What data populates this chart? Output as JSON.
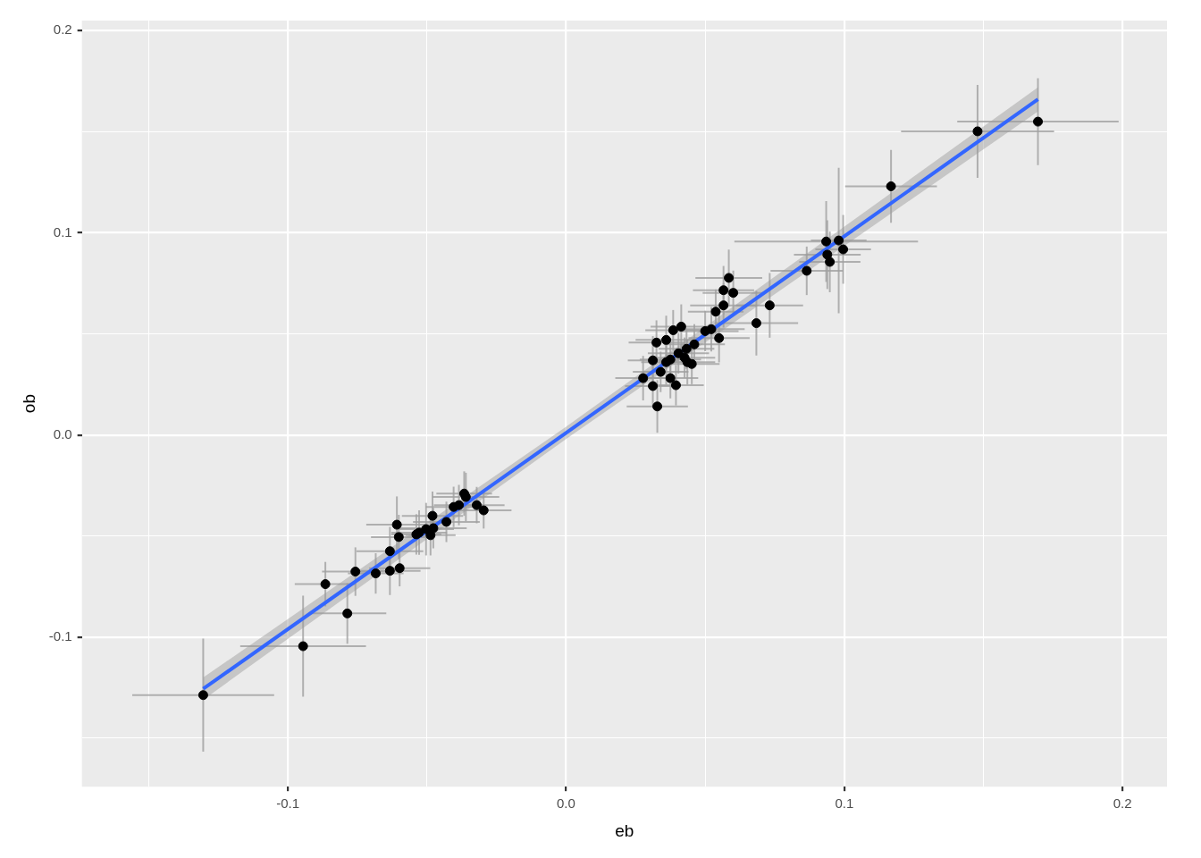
{
  "chart_data": {
    "type": "scatter",
    "xlabel": "eb",
    "ylabel": "ob",
    "grid": true,
    "legend": false,
    "xlim": [
      -0.174,
      0.216
    ],
    "ylim": [
      -0.174,
      0.205
    ],
    "xticks": [
      {
        "value": -0.15,
        "label": null
      },
      {
        "value": -0.1,
        "label": "-0.1"
      },
      {
        "value": -0.05,
        "label": null
      },
      {
        "value": 0,
        "label": "0.0"
      },
      {
        "value": 0.05,
        "label": null
      },
      {
        "value": 0.1,
        "label": "0.1"
      },
      {
        "value": 0.15,
        "label": null
      },
      {
        "value": 0.2,
        "label": "0.2"
      }
    ],
    "yticks": [
      {
        "value": -0.15,
        "label": null
      },
      {
        "value": -0.1,
        "label": "-0.1"
      },
      {
        "value": -0.05,
        "label": null
      },
      {
        "value": 0,
        "label": "0.0"
      },
      {
        "value": 0.05,
        "label": null
      },
      {
        "value": 0.1,
        "label": "0.1"
      },
      {
        "value": 0.15,
        "label": null
      },
      {
        "value": 0.2,
        "label": "0.2"
      }
    ],
    "series": [
      {
        "color": "#000000",
        "marker": "circle",
        "x": [
          -0.1304,
          -0.0945,
          -0.0865,
          -0.0786,
          -0.0757,
          -0.0684,
          -0.0633,
          -0.0633,
          -0.0608,
          -0.0601,
          -0.0598,
          -0.0538,
          -0.0528,
          -0.0503,
          -0.0487,
          -0.0477,
          -0.048,
          -0.043,
          -0.0404,
          -0.0385,
          -0.0366,
          -0.036,
          -0.0321,
          -0.0296,
          0.0277,
          0.0312,
          0.0312,
          0.0325,
          0.0328,
          0.034,
          0.036,
          0.036,
          0.0375,
          0.0375,
          0.0385,
          0.0395,
          0.0404,
          0.0414,
          0.0426,
          0.0433,
          0.0436,
          0.0452,
          0.0461,
          0.05,
          0.0522,
          0.0538,
          0.055,
          0.0566,
          0.0566,
          0.0585,
          0.0601,
          0.0684,
          0.0732,
          0.0865,
          0.0935,
          0.0939,
          0.0948,
          0.098,
          0.0996,
          0.1168,
          0.1479,
          0.1696
        ],
        "values": [
          -0.1287,
          -0.1045,
          -0.0738,
          -0.0883,
          -0.0676,
          -0.0685,
          -0.0575,
          -0.0672,
          -0.0444,
          -0.0505,
          -0.0659,
          -0.0492,
          -0.0483,
          -0.0466,
          -0.0496,
          -0.0461,
          -0.04,
          -0.043,
          -0.0356,
          -0.0347,
          -0.029,
          -0.0307,
          -0.0347,
          -0.0373,
          0.0281,
          0.0369,
          0.0242,
          0.0457,
          0.0141,
          0.0312,
          0.047,
          0.036,
          0.0373,
          0.0281,
          0.0518,
          0.0246,
          0.0404,
          0.0536,
          0.0382,
          0.0426,
          0.036,
          0.0351,
          0.0448,
          0.0514,
          0.0523,
          0.061,
          0.0479,
          0.0641,
          0.0716,
          0.0777,
          0.0703,
          0.0553,
          0.0641,
          0.0812,
          0.0957,
          0.0892,
          0.0856,
          0.0962,
          0.0918,
          0.123,
          0.1502,
          0.155
        ],
        "xerrors": [
          0.0255,
          0.0226,
          0.011,
          0.014,
          0.012,
          0.01,
          0.012,
          0.011,
          0.011,
          0.01,
          0.011,
          0.009,
          0.01,
          0.01,
          0.009,
          0.012,
          0.011,
          0.012,
          0.01,
          0.009,
          0.01,
          0.012,
          0.01,
          0.01,
          0.01,
          0.009,
          0.01,
          0.01,
          0.011,
          0.01,
          0.011,
          0.009,
          0.011,
          0.01,
          0.01,
          0.01,
          0.011,
          0.011,
          0.011,
          0.01,
          0.01,
          0.01,
          0.011,
          0.012,
          0.012,
          0.01,
          0.011,
          0.012,
          0.011,
          0.012,
          0.011,
          0.015,
          0.012,
          0.013,
          0.033,
          0.012,
          0.011,
          0.01,
          0.01,
          0.0165,
          0.0275,
          0.029
        ],
        "errors": [
          0.028,
          0.025,
          0.011,
          0.015,
          0.012,
          0.01,
          0.012,
          0.012,
          0.014,
          0.011,
          0.009,
          0.01,
          0.011,
          0.013,
          0.01,
          0.01,
          0.012,
          0.01,
          0.01,
          0.01,
          0.011,
          0.012,
          0.009,
          0.009,
          0.011,
          0.012,
          0.01,
          0.011,
          0.013,
          0.01,
          0.012,
          0.011,
          0.01,
          0.01,
          0.01,
          0.01,
          0.01,
          0.011,
          0.01,
          0.01,
          0.011,
          0.01,
          0.01,
          0.01,
          0.011,
          0.011,
          0.012,
          0.011,
          0.012,
          0.014,
          0.011,
          0.016,
          0.016,
          0.012,
          0.02,
          0.017,
          0.015,
          0.036,
          0.017,
          0.018,
          0.023,
          0.0215
        ]
      },
      {
        "type": "line",
        "color": "#3366ff",
        "x": [
          -0.1304,
          0,
          0.1696
        ],
        "values": [
          -0.1256,
          0.001,
          0.166
        ],
        "lower": [
          -0.131,
          -0.002,
          0.16
        ],
        "upper": [
          -0.12,
          0.004,
          0.172
        ]
      }
    ]
  }
}
